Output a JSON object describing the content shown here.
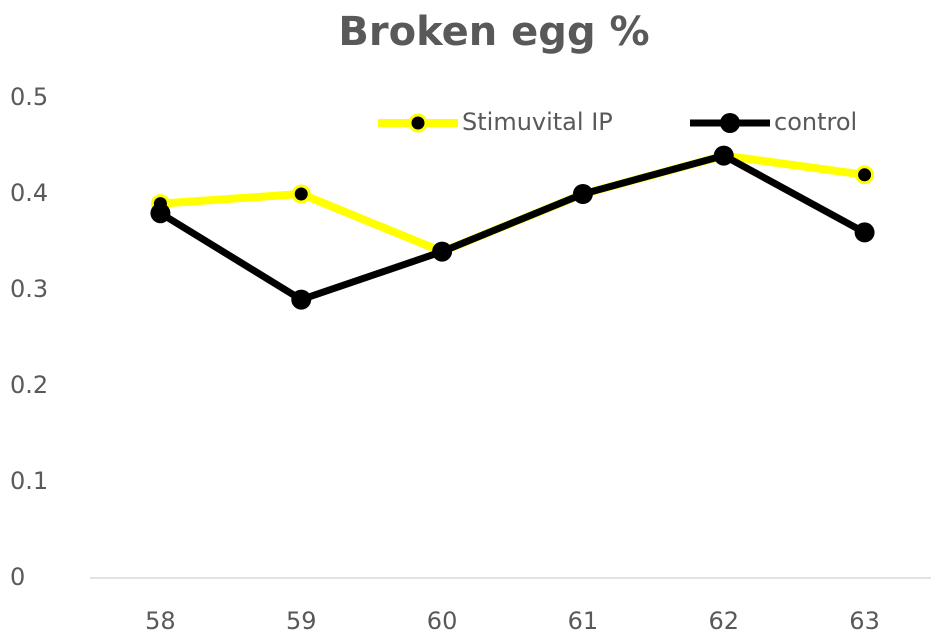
{
  "chart_data": {
    "type": "line",
    "title": "Broken egg %",
    "categories": [
      "58",
      "59",
      "60",
      "61",
      "62",
      "63"
    ],
    "series": [
      {
        "name": "Stimuvital IP",
        "color": "#ffff00",
        "values": [
          0.39,
          0.4,
          0.34,
          0.4,
          0.44,
          0.42
        ]
      },
      {
        "name": "control",
        "color": "#000000",
        "values": [
          0.38,
          0.29,
          0.34,
          0.4,
          0.44,
          0.36
        ]
      }
    ],
    "ylim": [
      0,
      0.5
    ],
    "yticks": [
      0,
      0.1,
      0.2,
      0.3,
      0.4,
      0.5
    ],
    "grid": false,
    "legend": "top-right"
  }
}
